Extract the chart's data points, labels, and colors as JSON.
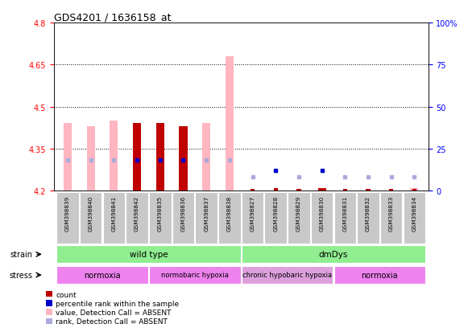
{
  "title": "GDS4201 / 1636158_at",
  "samples": [
    "GSM398839",
    "GSM398840",
    "GSM398841",
    "GSM398842",
    "GSM398835",
    "GSM398836",
    "GSM398837",
    "GSM398838",
    "GSM398827",
    "GSM398828",
    "GSM398829",
    "GSM398830",
    "GSM398831",
    "GSM398832",
    "GSM398833",
    "GSM398834"
  ],
  "ylim_left": [
    4.2,
    4.8
  ],
  "yticks_left": [
    4.2,
    4.35,
    4.5,
    4.65,
    4.8
  ],
  "ytick_labels_left": [
    "4.2",
    "4.35",
    "4.5",
    "4.65",
    "4.8"
  ],
  "ytick_labels_right": [
    "0",
    "25",
    "50",
    "75",
    "100%"
  ],
  "hlines": [
    4.35,
    4.5,
    4.65
  ],
  "bar_bottom": 4.2,
  "value_bars": [
    4.44,
    4.43,
    4.45,
    4.44,
    4.44,
    4.43,
    4.44,
    4.68,
    4.2,
    4.2,
    4.2,
    4.21,
    4.2,
    4.2,
    4.2,
    4.21
  ],
  "count_bars": [
    4.2,
    4.2,
    4.2,
    4.44,
    4.44,
    4.43,
    4.2,
    4.2,
    4.205,
    4.21,
    4.205,
    4.21,
    4.205,
    4.205,
    4.205,
    4.205
  ],
  "rank_values": [
    18,
    18,
    18,
    18,
    18,
    18,
    18,
    18,
    8,
    12,
    8,
    12,
    8,
    8,
    8,
    8
  ],
  "detection_call_absent": [
    true,
    true,
    true,
    false,
    false,
    false,
    true,
    true,
    true,
    false,
    true,
    false,
    true,
    true,
    true,
    true
  ],
  "value_bar_absent_color": "#FFB6C1",
  "value_bar_present_color": "#C00000",
  "rank_absent_color": "#AAAADD",
  "rank_present_color": "#0000CD",
  "strain_groups": [
    {
      "label": "wild type",
      "start": 0,
      "end": 7
    },
    {
      "label": "dmDys",
      "start": 8,
      "end": 15
    }
  ],
  "stress_groups": [
    {
      "label": "normoxia",
      "start": 0,
      "end": 3,
      "bright": true
    },
    {
      "label": "normobaric hypoxia",
      "start": 4,
      "end": 7,
      "bright": true
    },
    {
      "label": "chronic hypobaric hypoxia",
      "start": 8,
      "end": 11,
      "bright": false
    },
    {
      "label": "normoxia",
      "start": 12,
      "end": 15,
      "bright": true
    }
  ],
  "legend_items": [
    {
      "color": "#C00000",
      "label": "count"
    },
    {
      "color": "#0000CD",
      "label": "percentile rank within the sample"
    },
    {
      "color": "#FFB6C1",
      "label": "value, Detection Call = ABSENT"
    },
    {
      "color": "#AAAADD",
      "label": "rank, Detection Call = ABSENT"
    }
  ],
  "strain_color": "#90EE90",
  "stress_color_bright": "#EE82EE",
  "stress_color_pale": "#DDA0DD",
  "xticklabel_bg": "#C8C8C8",
  "ylabel_left_color": "#FF0000",
  "ylabel_right_color": "#0000FF"
}
